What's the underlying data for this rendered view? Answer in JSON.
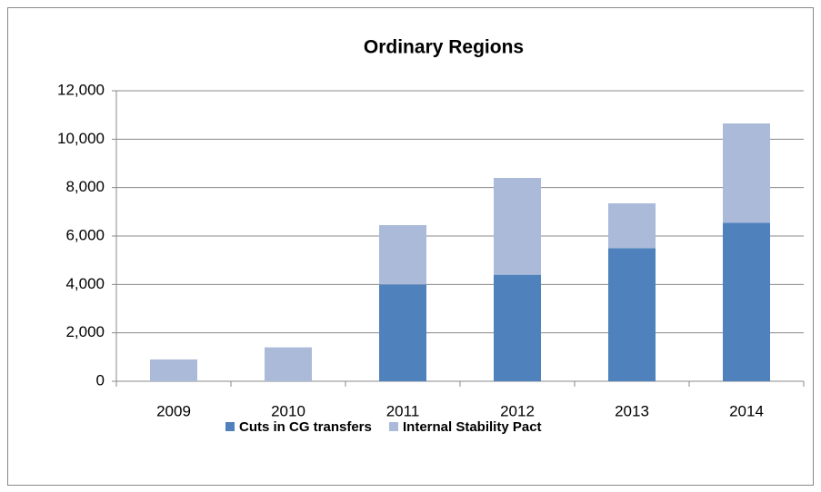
{
  "chart_data": {
    "type": "stacked_bar",
    "title": "Ordinary Regions",
    "categories": [
      "2009",
      "2010",
      "2011",
      "2012",
      "2013",
      "2014"
    ],
    "series": [
      {
        "name": "Cuts in CG transfers",
        "color": "#4f81bd",
        "values": [
          0,
          0,
          4000,
          4400,
          5500,
          6550
        ]
      },
      {
        "name": "Internal Stability Pact",
        "color": "#aabad8",
        "values": [
          900,
          1400,
          2450,
          4000,
          1850,
          4100
        ]
      }
    ],
    "ylim": [
      0,
      12000
    ],
    "yticks": [
      0,
      {
        "value": 2000,
        "label": "2,000"
      },
      {
        "value": 4000,
        "label": "4,000"
      },
      {
        "value": 6000,
        "label": "6,000"
      },
      {
        "value": 8000,
        "label": "8,000"
      },
      {
        "value": 10000,
        "label": "10,000"
      },
      {
        "value": 12000,
        "label": "12,000"
      }
    ],
    "grid": true,
    "legend": "bottom"
  }
}
